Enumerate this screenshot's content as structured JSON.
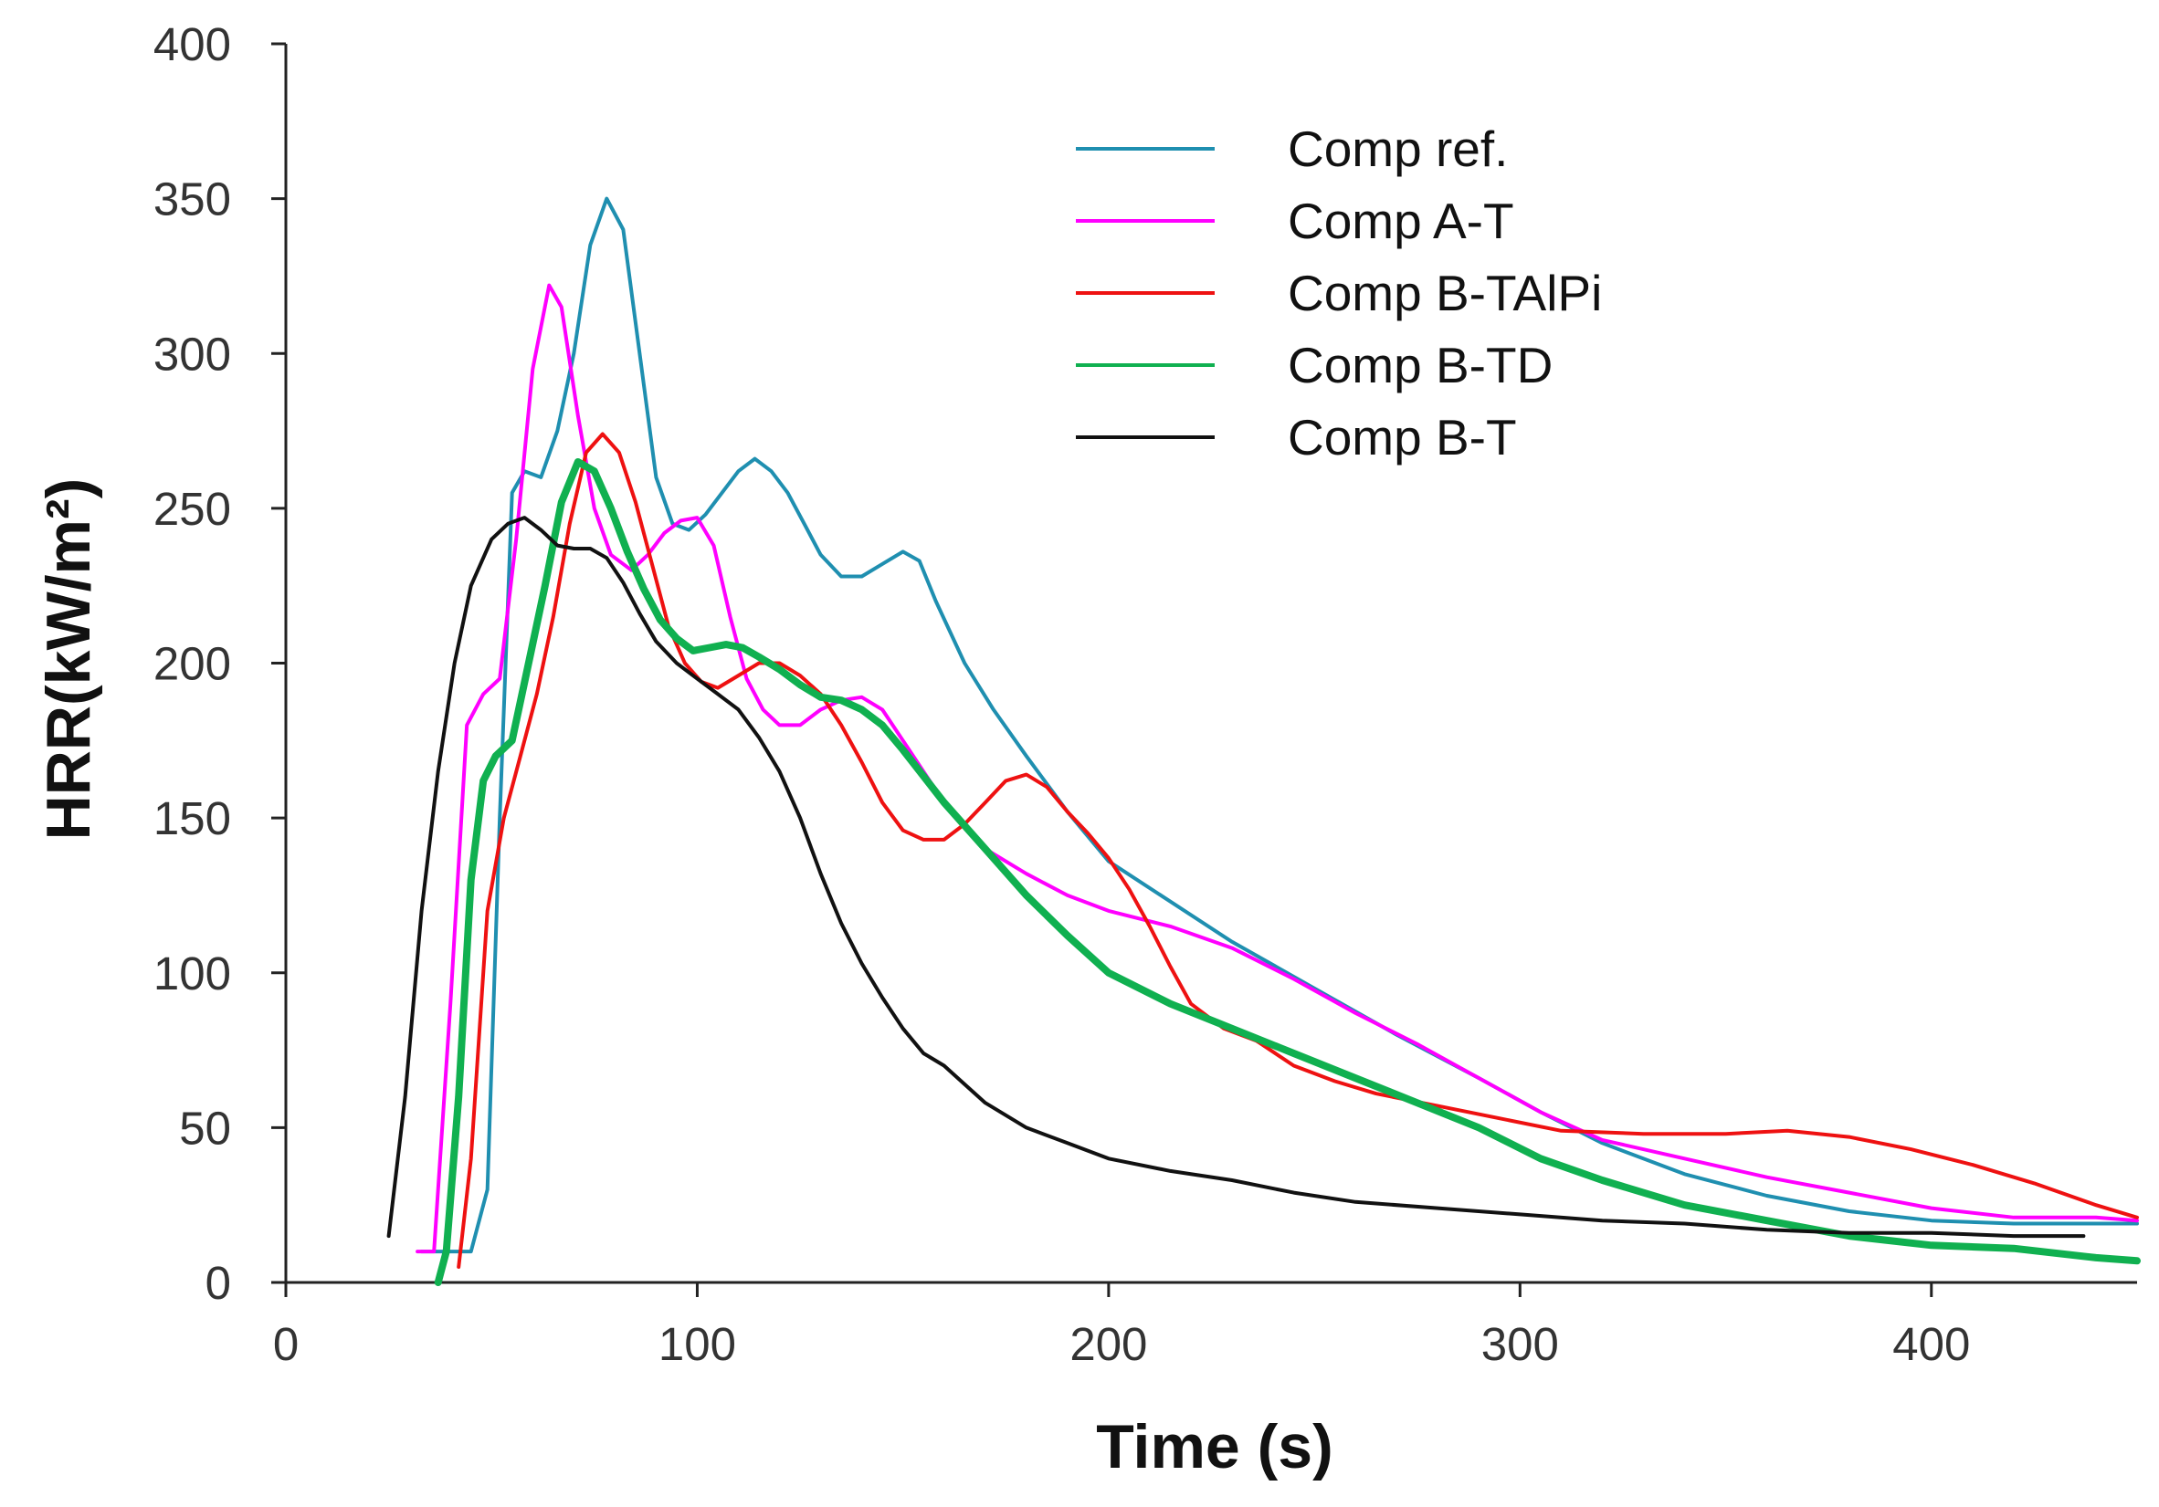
{
  "chart_data": {
    "type": "line",
    "title": "",
    "xlabel": "Time (s)",
    "ylabel": "HRR(kW/m²)",
    "xlim": [
      0,
      450
    ],
    "ylim": [
      0,
      400
    ],
    "xticks": [
      0,
      100,
      200,
      300,
      400
    ],
    "yticks": [
      0,
      50,
      100,
      150,
      200,
      250,
      300,
      350,
      400
    ],
    "grid": false,
    "legend_position": "top-right",
    "series": [
      {
        "name": "Comp ref.",
        "color": "#1f8fb0",
        "width": 4,
        "points": [
          [
            33,
            10
          ],
          [
            45,
            10
          ],
          [
            49,
            30
          ],
          [
            52,
            150
          ],
          [
            55,
            255
          ],
          [
            58,
            262
          ],
          [
            62,
            260
          ],
          [
            66,
            275
          ],
          [
            70,
            300
          ],
          [
            74,
            335
          ],
          [
            78,
            350
          ],
          [
            82,
            340
          ],
          [
            86,
            300
          ],
          [
            90,
            260
          ],
          [
            94,
            245
          ],
          [
            98,
            243
          ],
          [
            102,
            248
          ],
          [
            106,
            255
          ],
          [
            110,
            262
          ],
          [
            114,
            266
          ],
          [
            118,
            262
          ],
          [
            122,
            255
          ],
          [
            126,
            245
          ],
          [
            130,
            235
          ],
          [
            135,
            228
          ],
          [
            140,
            228
          ],
          [
            145,
            232
          ],
          [
            150,
            236
          ],
          [
            154,
            233
          ],
          [
            158,
            220
          ],
          [
            165,
            200
          ],
          [
            172,
            185
          ],
          [
            180,
            170
          ],
          [
            190,
            152
          ],
          [
            200,
            136
          ],
          [
            215,
            123
          ],
          [
            230,
            110
          ],
          [
            250,
            95
          ],
          [
            270,
            80
          ],
          [
            290,
            66
          ],
          [
            305,
            55
          ],
          [
            320,
            45
          ],
          [
            340,
            35
          ],
          [
            360,
            28
          ],
          [
            380,
            23
          ],
          [
            400,
            20
          ],
          [
            420,
            19
          ],
          [
            440,
            19
          ],
          [
            450,
            19
          ]
        ]
      },
      {
        "name": "Comp A-T",
        "color": "#ff00ff",
        "width": 4,
        "points": [
          [
            32,
            10
          ],
          [
            36,
            10
          ],
          [
            40,
            90
          ],
          [
            44,
            180
          ],
          [
            48,
            190
          ],
          [
            52,
            195
          ],
          [
            56,
            240
          ],
          [
            60,
            295
          ],
          [
            64,
            322
          ],
          [
            67,
            315
          ],
          [
            71,
            280
          ],
          [
            75,
            250
          ],
          [
            79,
            235
          ],
          [
            84,
            230
          ],
          [
            88,
            235
          ],
          [
            92,
            242
          ],
          [
            96,
            246
          ],
          [
            100,
            247
          ],
          [
            104,
            238
          ],
          [
            108,
            215
          ],
          [
            112,
            195
          ],
          [
            116,
            185
          ],
          [
            120,
            180
          ],
          [
            125,
            180
          ],
          [
            130,
            185
          ],
          [
            135,
            188
          ],
          [
            140,
            189
          ],
          [
            145,
            185
          ],
          [
            150,
            175
          ],
          [
            155,
            165
          ],
          [
            160,
            155
          ],
          [
            170,
            140
          ],
          [
            180,
            132
          ],
          [
            190,
            125
          ],
          [
            200,
            120
          ],
          [
            215,
            115
          ],
          [
            230,
            108
          ],
          [
            245,
            98
          ],
          [
            260,
            87
          ],
          [
            275,
            77
          ],
          [
            290,
            66
          ],
          [
            305,
            55
          ],
          [
            320,
            46
          ],
          [
            340,
            40
          ],
          [
            360,
            34
          ],
          [
            380,
            29
          ],
          [
            400,
            24
          ],
          [
            420,
            21
          ],
          [
            440,
            21
          ],
          [
            450,
            20
          ]
        ]
      },
      {
        "name": "Comp B-TAlPi",
        "color": "#ee1111",
        "width": 4,
        "points": [
          [
            42,
            5
          ],
          [
            45,
            40
          ],
          [
            49,
            120
          ],
          [
            53,
            150
          ],
          [
            57,
            170
          ],
          [
            61,
            190
          ],
          [
            65,
            215
          ],
          [
            69,
            245
          ],
          [
            73,
            268
          ],
          [
            77,
            274
          ],
          [
            81,
            268
          ],
          [
            85,
            252
          ],
          [
            89,
            232
          ],
          [
            93,
            212
          ],
          [
            97,
            200
          ],
          [
            101,
            194
          ],
          [
            105,
            192
          ],
          [
            110,
            196
          ],
          [
            115,
            200
          ],
          [
            120,
            200
          ],
          [
            125,
            196
          ],
          [
            130,
            190
          ],
          [
            135,
            180
          ],
          [
            140,
            168
          ],
          [
            145,
            155
          ],
          [
            150,
            146
          ],
          [
            155,
            143
          ],
          [
            160,
            143
          ],
          [
            165,
            148
          ],
          [
            170,
            155
          ],
          [
            175,
            162
          ],
          [
            180,
            164
          ],
          [
            185,
            160
          ],
          [
            190,
            152
          ],
          [
            195,
            145
          ],
          [
            200,
            137
          ],
          [
            205,
            127
          ],
          [
            210,
            115
          ],
          [
            215,
            102
          ],
          [
            220,
            90
          ],
          [
            228,
            82
          ],
          [
            236,
            78
          ],
          [
            245,
            70
          ],
          [
            255,
            65
          ],
          [
            265,
            61
          ],
          [
            280,
            57
          ],
          [
            295,
            53
          ],
          [
            310,
            49
          ],
          [
            330,
            48
          ],
          [
            350,
            48
          ],
          [
            365,
            49
          ],
          [
            380,
            47
          ],
          [
            395,
            43
          ],
          [
            410,
            38
          ],
          [
            425,
            32
          ],
          [
            440,
            25
          ],
          [
            450,
            21
          ]
        ]
      },
      {
        "name": "Comp B-TD",
        "color": "#10b050",
        "width": 8,
        "points": [
          [
            37,
            0
          ],
          [
            39,
            10
          ],
          [
            42,
            60
          ],
          [
            45,
            130
          ],
          [
            48,
            162
          ],
          [
            51,
            170
          ],
          [
            55,
            175
          ],
          [
            59,
            200
          ],
          [
            63,
            225
          ],
          [
            67,
            252
          ],
          [
            71,
            265
          ],
          [
            75,
            262
          ],
          [
            79,
            250
          ],
          [
            83,
            236
          ],
          [
            87,
            224
          ],
          [
            91,
            214
          ],
          [
            95,
            208
          ],
          [
            99,
            204
          ],
          [
            103,
            205
          ],
          [
            107,
            206
          ],
          [
            111,
            205
          ],
          [
            115,
            202
          ],
          [
            120,
            198
          ],
          [
            125,
            193
          ],
          [
            130,
            189
          ],
          [
            135,
            188
          ],
          [
            140,
            185
          ],
          [
            145,
            180
          ],
          [
            150,
            172
          ],
          [
            160,
            155
          ],
          [
            170,
            140
          ],
          [
            180,
            125
          ],
          [
            190,
            112
          ],
          [
            200,
            100
          ],
          [
            215,
            90
          ],
          [
            230,
            82
          ],
          [
            245,
            74
          ],
          [
            260,
            66
          ],
          [
            275,
            58
          ],
          [
            290,
            50
          ],
          [
            305,
            40
          ],
          [
            320,
            33
          ],
          [
            340,
            25
          ],
          [
            360,
            20
          ],
          [
            380,
            15
          ],
          [
            400,
            12
          ],
          [
            420,
            11
          ],
          [
            440,
            8
          ],
          [
            450,
            7
          ]
        ]
      },
      {
        "name": "Comp B-T",
        "color": "#111111",
        "width": 4,
        "points": [
          [
            25,
            15
          ],
          [
            29,
            60
          ],
          [
            33,
            120
          ],
          [
            37,
            165
          ],
          [
            41,
            200
          ],
          [
            45,
            225
          ],
          [
            50,
            240
          ],
          [
            54,
            245
          ],
          [
            58,
            247
          ],
          [
            62,
            243
          ],
          [
            66,
            238
          ],
          [
            70,
            237
          ],
          [
            74,
            237
          ],
          [
            78,
            234
          ],
          [
            82,
            226
          ],
          [
            86,
            216
          ],
          [
            90,
            207
          ],
          [
            95,
            200
          ],
          [
            100,
            195
          ],
          [
            105,
            190
          ],
          [
            110,
            185
          ],
          [
            115,
            176
          ],
          [
            120,
            165
          ],
          [
            125,
            150
          ],
          [
            130,
            132
          ],
          [
            135,
            116
          ],
          [
            140,
            103
          ],
          [
            145,
            92
          ],
          [
            150,
            82
          ],
          [
            155,
            74
          ],
          [
            160,
            70
          ],
          [
            165,
            64
          ],
          [
            170,
            58
          ],
          [
            175,
            54
          ],
          [
            180,
            50
          ],
          [
            190,
            45
          ],
          [
            200,
            40
          ],
          [
            215,
            36
          ],
          [
            230,
            33
          ],
          [
            245,
            29
          ],
          [
            260,
            26
          ],
          [
            280,
            24
          ],
          [
            300,
            22
          ],
          [
            320,
            20
          ],
          [
            340,
            19
          ],
          [
            360,
            17
          ],
          [
            380,
            16
          ],
          [
            400,
            16
          ],
          [
            420,
            15
          ],
          [
            437,
            15
          ]
        ]
      }
    ]
  }
}
